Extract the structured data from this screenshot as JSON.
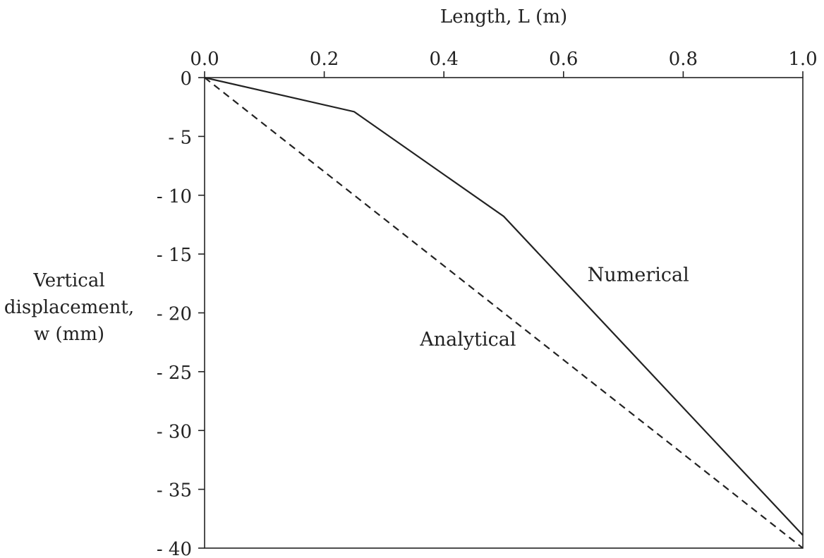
{
  "chart_data": {
    "type": "line",
    "xlabel": "Length, L (m)",
    "ylabel_lines": [
      "Vertical",
      "displacement,",
      "w (mm)"
    ],
    "xlim": [
      0.0,
      1.0
    ],
    "ylim": [
      -40,
      0
    ],
    "x_ticks": [
      0.0,
      0.2,
      0.4,
      0.6,
      0.8,
      1.0
    ],
    "x_tick_labels": [
      "0.0",
      "0.2",
      "0.4",
      "0.6",
      "0.8",
      "1.0"
    ],
    "y_ticks": [
      0,
      -5,
      -10,
      -15,
      -20,
      -25,
      -30,
      -35,
      -40
    ],
    "y_tick_labels": [
      "0",
      "- 5",
      "- 10",
      "- 15",
      "- 20",
      "- 25",
      "- 30",
      "- 35",
      "- 40"
    ],
    "x_axis_position": "top",
    "grid": false,
    "series": [
      {
        "name": "Numerical",
        "style": "solid",
        "x": [
          0.0,
          0.25,
          0.5,
          1.0
        ],
        "y": [
          0,
          -2.9,
          -11.8,
          -38.9
        ]
      },
      {
        "name": "Analytical",
        "style": "dashed",
        "x": [
          0.0,
          1.0
        ],
        "y": [
          0,
          -40
        ]
      }
    ],
    "annotations": [
      {
        "text": "Numerical",
        "x": 0.64,
        "y": -17.3
      },
      {
        "text": "Analytical",
        "x": 0.36,
        "y": -22.8
      }
    ],
    "colors": {
      "line": "#222222",
      "axis": "#222222"
    }
  }
}
